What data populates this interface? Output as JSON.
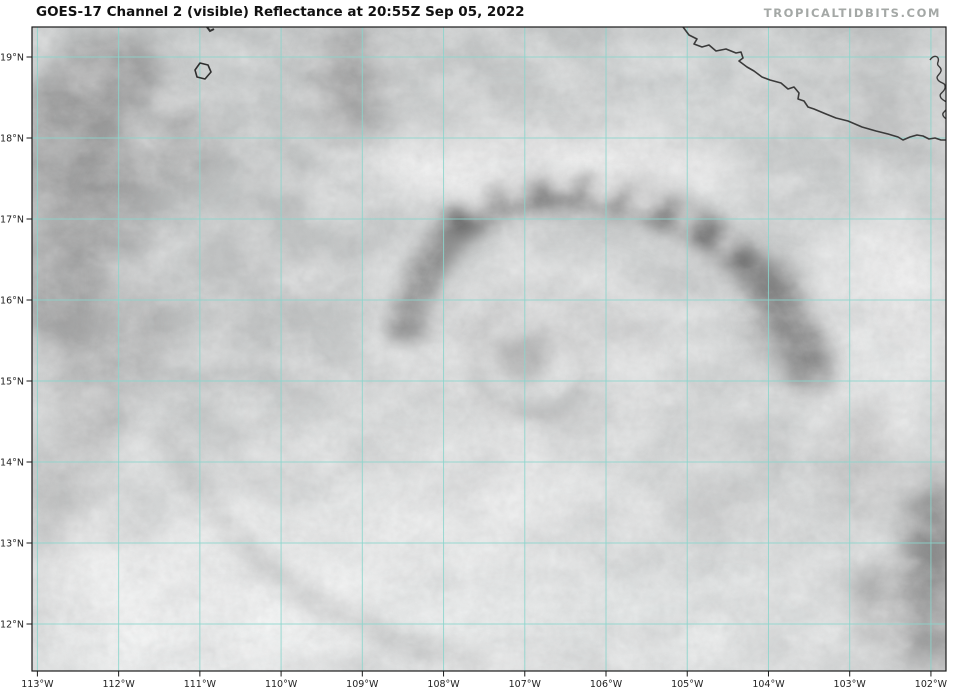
{
  "header": {
    "title": "GOES-17 Channel 2 (visible) Reflectance at 20:55Z Sep 05, 2022",
    "watermark": "TROPICALTIDBITS.COM"
  },
  "map": {
    "lat_labels": [
      "19°N",
      "18°N",
      "17°N",
      "16°N",
      "15°N",
      "14°N",
      "13°N",
      "12°N"
    ],
    "lon_labels": [
      "113°W",
      "112°W",
      "111°W",
      "110°W",
      "109°W",
      "108°W",
      "107°W",
      "106°W",
      "105°W",
      "104°W",
      "103°W",
      "102°W"
    ],
    "grid_color": "#8ad5cc",
    "coast_color": "#3a3a3a",
    "frame_color": "#1a1a1a",
    "tick_color": "#1a1a1a",
    "tick_label_color": "#222222",
    "background_color": "#ffffff",
    "title_color": "#111111",
    "watermark_color": "#a4a8a6",
    "features": {
      "coastline": "coastline-mexico-pacific",
      "lagoon": "barrier-lagoon-inlets",
      "island": "small-island-outline",
      "clouds": "tropical-cyclone-cloud-field"
    }
  }
}
